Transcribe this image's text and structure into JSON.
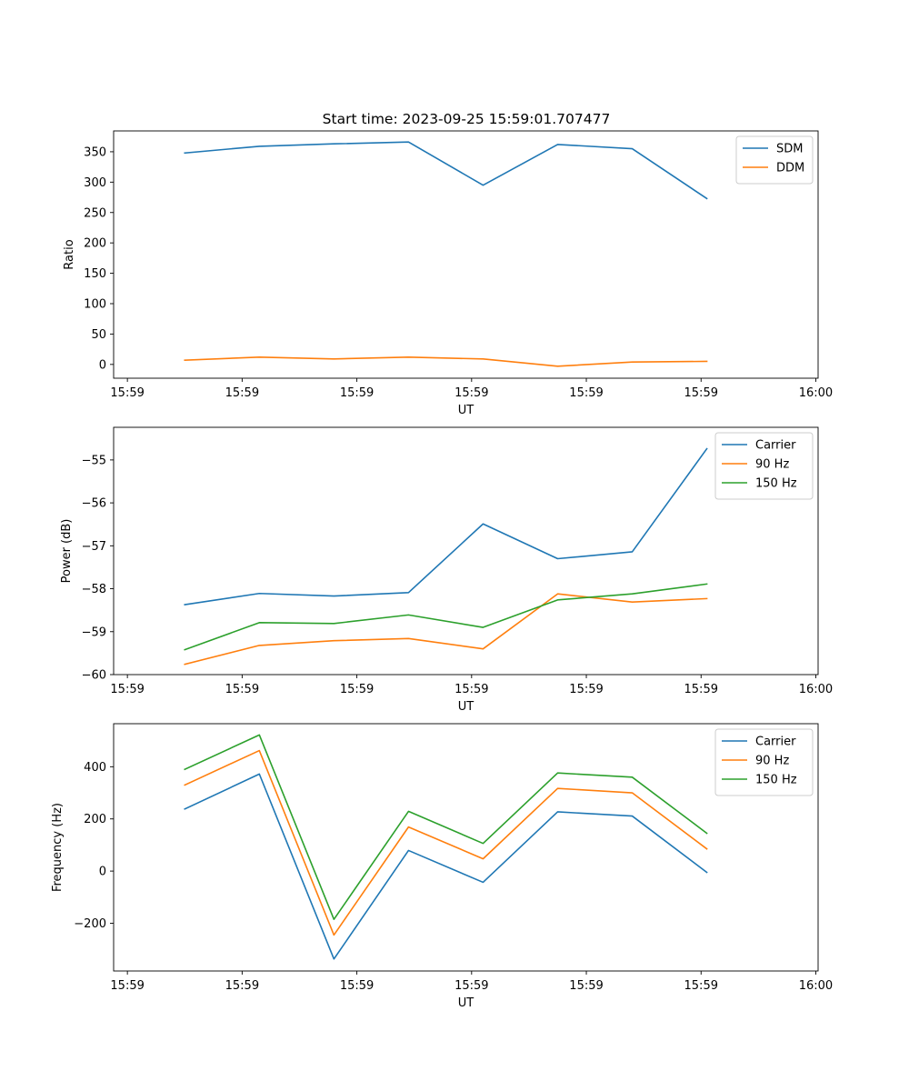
{
  "figure": {
    "title": "Start time: 2023-09-25 15:59:01.707477"
  },
  "chart_data": [
    {
      "type": "line",
      "title": "Start time: 2023-09-25 15:59:01.707477",
      "xlabel": "UT",
      "ylabel": "Ratio",
      "x_tick_labels": [
        "15:59",
        "15:59",
        "15:59",
        "15:59",
        "15:59",
        "15:59",
        "16:00"
      ],
      "x_ticks_s": [
        0,
        10,
        20,
        30,
        40,
        50,
        60
      ],
      "xlim_s": [
        -1.2,
        60.2
      ],
      "x_s": [
        5,
        11.5,
        18,
        24.5,
        31,
        37.5,
        44,
        50.5
      ],
      "ylim": [
        -22.7,
        384.3
      ],
      "y_ticks": [
        0,
        50,
        100,
        150,
        200,
        250,
        300,
        350
      ],
      "y_tick_labels": [
        "0",
        "50",
        "100",
        "150",
        "200",
        "250",
        "300",
        "350"
      ],
      "legend_loc": "upper right",
      "series": [
        {
          "name": "SDM",
          "color": "#1f77b4",
          "values": [
            348,
            359,
            363,
            366,
            295,
            362,
            355,
            273
          ]
        },
        {
          "name": "DDM",
          "color": "#ff7f0e",
          "values": [
            7,
            12,
            9,
            12,
            9,
            -3,
            4,
            5
          ]
        }
      ]
    },
    {
      "type": "line",
      "title": "",
      "xlabel": "UT",
      "ylabel": "Power (dB)",
      "x_tick_labels": [
        "15:59",
        "15:59",
        "15:59",
        "15:59",
        "15:59",
        "15:59",
        "16:00"
      ],
      "x_ticks_s": [
        0,
        10,
        20,
        30,
        40,
        50,
        60
      ],
      "xlim_s": [
        -1.2,
        60.2
      ],
      "x_s": [
        5,
        11.5,
        18,
        24.5,
        31,
        37.5,
        44,
        50.5
      ],
      "ylim": [
        -60.0,
        -54.24
      ],
      "y_ticks": [
        -60,
        -59,
        -58,
        -57,
        -56,
        -55
      ],
      "y_tick_labels": [
        "−60",
        "−59",
        "−58",
        "−57",
        "−56",
        "−55"
      ],
      "legend_loc": "upper right",
      "series": [
        {
          "name": "Carrier",
          "color": "#1f77b4",
          "values": [
            -58.37,
            -58.11,
            -58.17,
            -58.09,
            -56.49,
            -57.3,
            -57.14,
            -54.74
          ]
        },
        {
          "name": "90 Hz",
          "color": "#ff7f0e",
          "values": [
            -59.76,
            -59.32,
            -59.21,
            -59.16,
            -59.4,
            -58.12,
            -58.31,
            -58.23
          ]
        },
        {
          "name": "150 Hz",
          "color": "#2ca02c",
          "values": [
            -59.42,
            -58.79,
            -58.81,
            -58.61,
            -58.9,
            -58.26,
            -58.12,
            -57.89
          ]
        }
      ]
    },
    {
      "type": "line",
      "title": "",
      "xlabel": "UT",
      "ylabel": "Frequency (Hz)",
      "x_tick_labels": [
        "15:59",
        "15:59",
        "15:59",
        "15:59",
        "15:59",
        "15:59",
        "16:00"
      ],
      "x_ticks_s": [
        0,
        10,
        20,
        30,
        40,
        50,
        60
      ],
      "xlim_s": [
        -1.2,
        60.2
      ],
      "x_s": [
        5,
        11.5,
        18,
        24.5,
        31,
        37.5,
        44,
        50.5
      ],
      "ylim": [
        -383,
        565
      ],
      "y_ticks": [
        -200,
        0,
        200,
        400
      ],
      "y_tick_labels": [
        "−200",
        "0",
        "200",
        "400"
      ],
      "legend_loc": "upper right",
      "series": [
        {
          "name": "Carrier",
          "color": "#1f77b4",
          "values": [
            238,
            372,
            -337,
            79,
            -43,
            227,
            211,
            -5
          ]
        },
        {
          "name": "90 Hz",
          "color": "#ff7f0e",
          "values": [
            330,
            462,
            -245,
            169,
            47,
            317,
            300,
            85
          ]
        },
        {
          "name": "150 Hz",
          "color": "#2ca02c",
          "values": [
            390,
            522,
            -185,
            229,
            106,
            376,
            360,
            145
          ]
        }
      ]
    }
  ]
}
